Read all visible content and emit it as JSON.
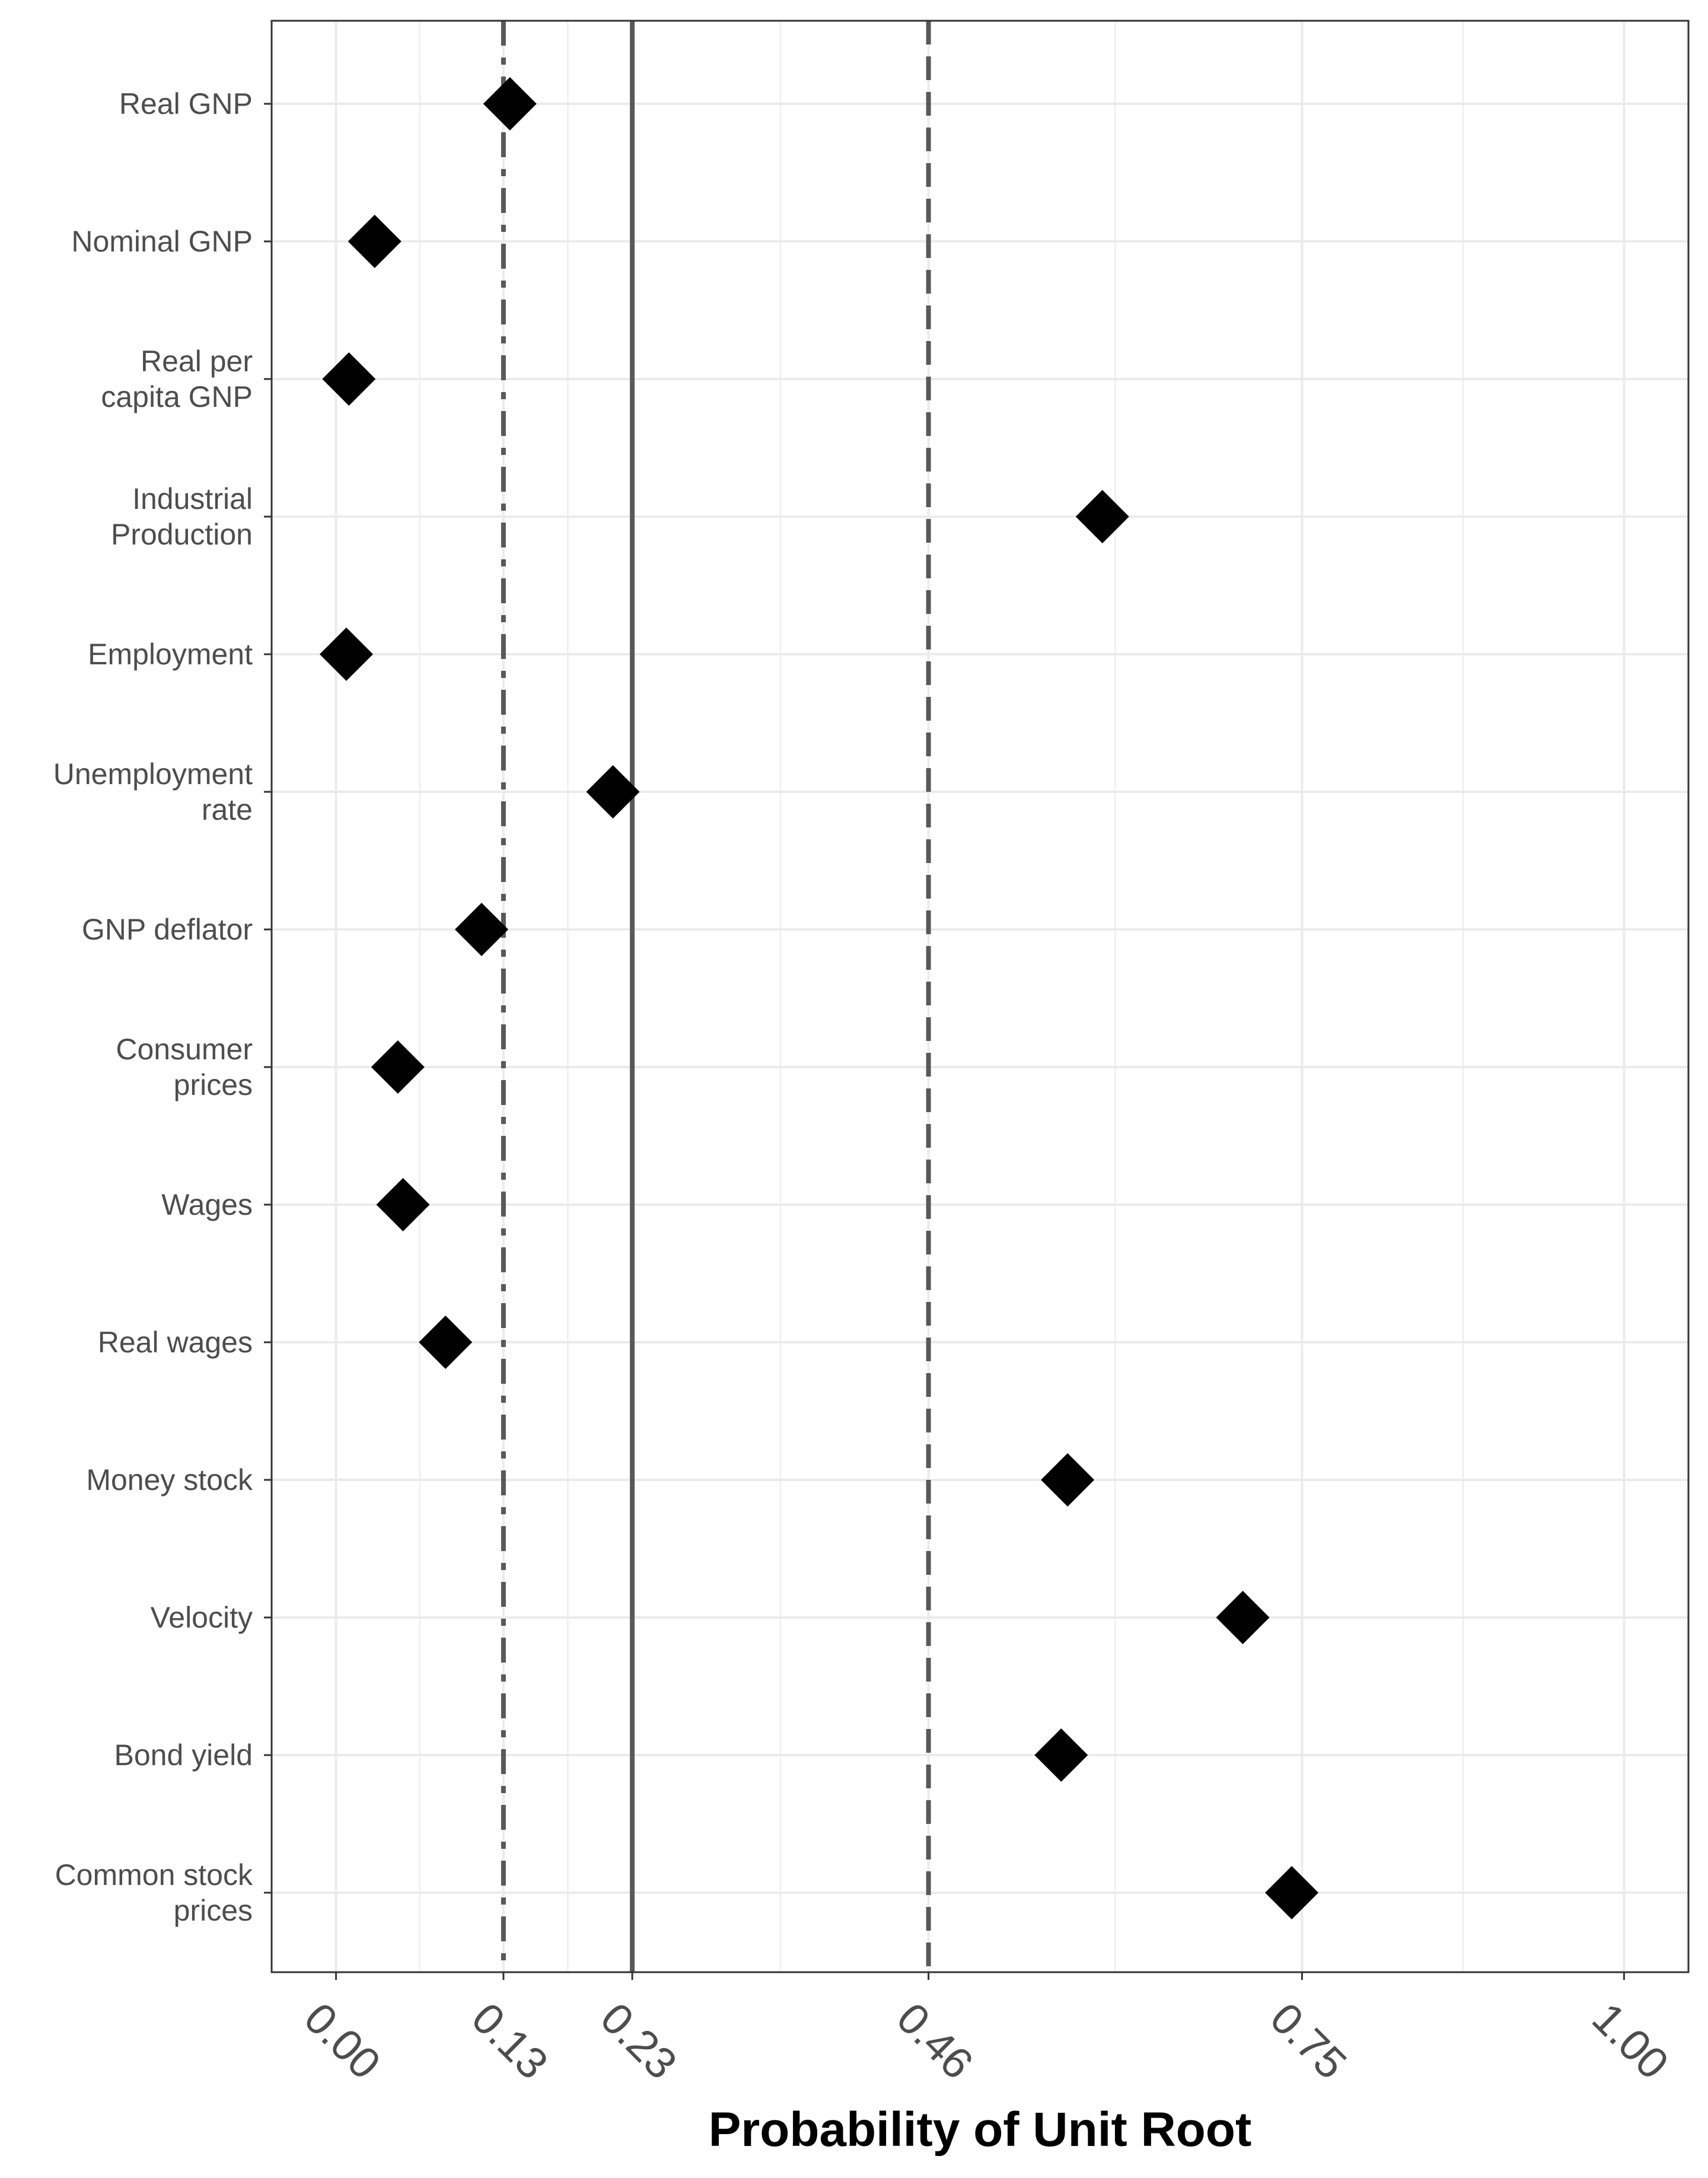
{
  "chart_data": {
    "type": "scatter",
    "orientation": "horizontal",
    "title": "",
    "xlabel": "Probability of Unit Root",
    "ylabel": "",
    "xlim": [
      -0.05,
      1.05
    ],
    "x_ticks": [
      0.0,
      0.13,
      0.23,
      0.46,
      0.75,
      1.0
    ],
    "x_tick_labels": [
      "0.00",
      "0.13",
      "0.23",
      "0.46",
      "0.75",
      "1.00"
    ],
    "minor_gridlines_x": [
      0.065,
      0.18,
      0.345,
      0.605,
      0.875
    ],
    "categories": [
      [
        "Real GNP"
      ],
      [
        "Nominal GNP"
      ],
      [
        "Real per",
        "capita GNP"
      ],
      [
        "Industrial",
        "Production"
      ],
      [
        "Employment"
      ],
      [
        "Unemployment",
        "rate"
      ],
      [
        "GNP deflator"
      ],
      [
        "Consumer",
        "prices"
      ],
      [
        "Wages"
      ],
      [
        "Real wages"
      ],
      [
        "Money stock"
      ],
      [
        "Velocity"
      ],
      [
        "Bond yield"
      ],
      [
        "Common stock",
        "prices"
      ]
    ],
    "values": [
      0.135,
      0.03,
      0.01,
      0.595,
      0.008,
      0.215,
      0.113,
      0.048,
      0.052,
      0.085,
      0.568,
      0.704,
      0.563,
      0.742
    ],
    "marker": "diamond",
    "marker_color": "#000000",
    "reference_lines": [
      {
        "x": 0.13,
        "style": "dashdot",
        "color": "#595959"
      },
      {
        "x": 0.23,
        "style": "solid",
        "color": "#595959"
      },
      {
        "x": 0.46,
        "style": "dashed",
        "color": "#595959"
      }
    ],
    "grid": true,
    "legend": "none",
    "theme_colors": {
      "panel_border": "#333333",
      "gridline": "#ebebeb",
      "text": "#4d4d4d"
    }
  }
}
